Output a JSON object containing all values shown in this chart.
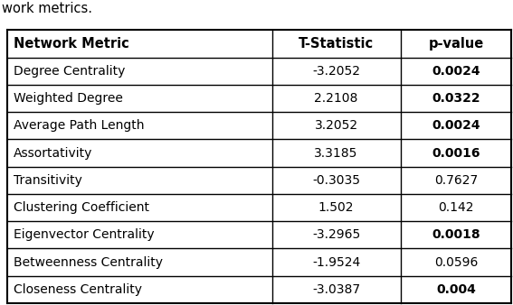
{
  "caption": "work metrics.",
  "headers": [
    "Network Metric",
    "T-Statistic",
    "p-value"
  ],
  "rows": [
    [
      "Degree Centrality",
      "-3.2052",
      "0.0024"
    ],
    [
      "Weighted Degree",
      "2.2108",
      "0.0322"
    ],
    [
      "Average Path Length",
      "3.2052",
      "0.0024"
    ],
    [
      "Assortativity",
      "3.3185",
      "0.0016"
    ],
    [
      "Transitivity",
      "-0.3035",
      "0.7627"
    ],
    [
      "Clustering Coefficient",
      "1.502",
      "0.142"
    ],
    [
      "Eigenvector Centrality",
      "-3.2965",
      "0.0018"
    ],
    [
      "Betweenness Centrality",
      "-1.9524",
      "0.0596"
    ],
    [
      "Closeness Centrality",
      "-3.0387",
      "0.004"
    ]
  ],
  "bold_pvalues": [
    "0.0024",
    "0.0322",
    "0.0016",
    "0.0018",
    "0.004"
  ],
  "fig_width": 5.72,
  "fig_height": 3.48,
  "dpi": 100,
  "background_color": "#ffffff",
  "header_font_size": 10.5,
  "cell_font_size": 10.0,
  "caption_font_size": 10.5,
  "font_family": "DejaVu Sans"
}
